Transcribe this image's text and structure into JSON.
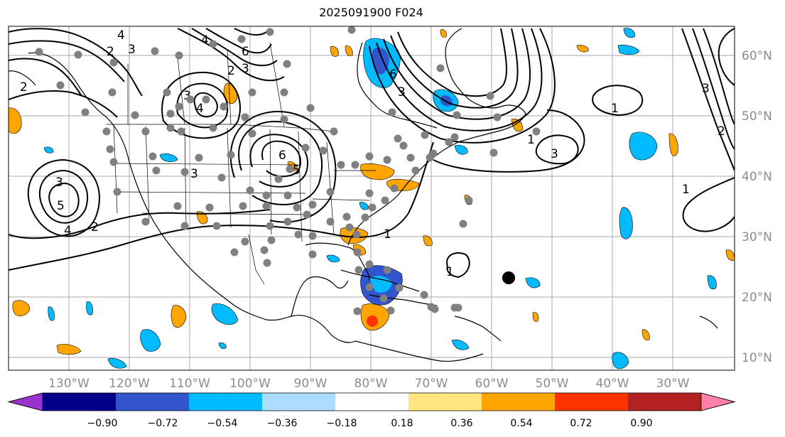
{
  "title": "2025091900 F024",
  "lon_labels": [
    "130°W",
    "120°W",
    "110°W",
    "100°W",
    "90°W",
    "80°W",
    "70°W",
    "60°W",
    "50°W",
    "40°W",
    "30°W"
  ],
  "lat_labels": [
    "60°N",
    "50°N",
    "40°N",
    "30°N",
    "20°N",
    "10°N"
  ],
  "colorbar": {
    "ticks": [
      "−0.90",
      "−0.72",
      "−0.54",
      "−0.36",
      "−0.18",
      "0.18",
      "0.36",
      "0.54",
      "0.72",
      "0.90"
    ],
    "colors": [
      "#9933cc",
      "#000088",
      "#3355cc",
      "#00bbff",
      "#aaddff",
      "#ffffff",
      "#ffe680",
      "#ffa500",
      "#ff3300",
      "#b22222",
      "#ff80aa"
    ]
  },
  "contour_labels": [
    "4",
    "2",
    "3",
    "6",
    "4",
    "2",
    "3",
    "3",
    "4",
    "2",
    "6",
    "5",
    "1",
    "1",
    "1",
    "3",
    "2",
    "3",
    "1",
    "6",
    "2",
    "3",
    "4",
    "5",
    "3",
    "3",
    "1"
  ],
  "marker": "station-dot"
}
